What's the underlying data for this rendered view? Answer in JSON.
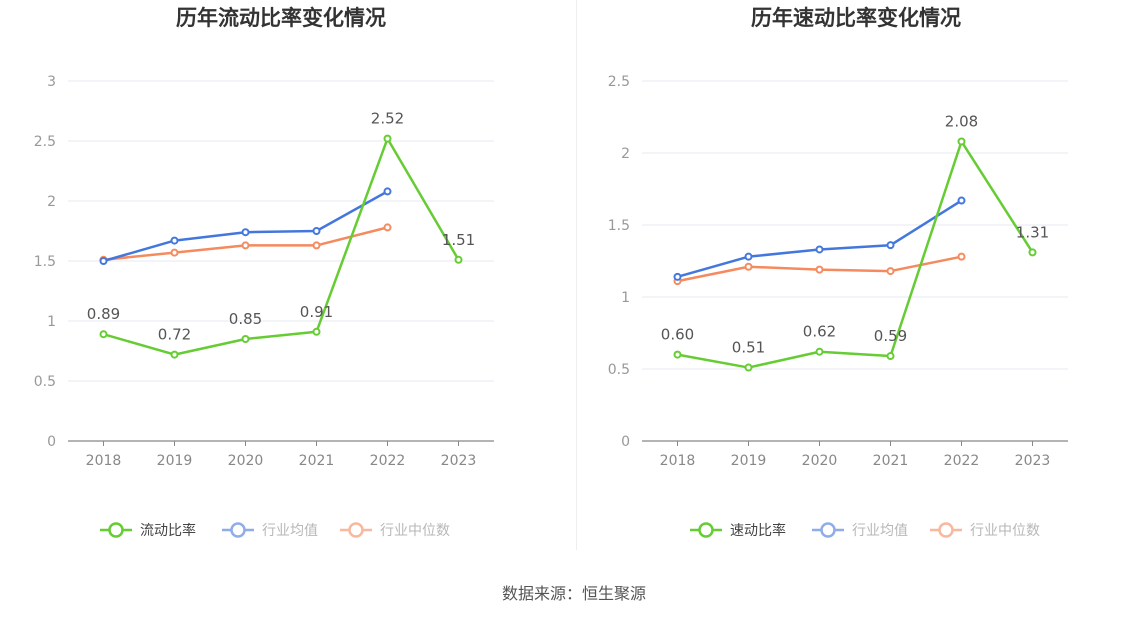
{
  "colors": {
    "current_ratio": "#66cc33",
    "industry_avg": "#4477dd",
    "industry_median": "#f58a5e",
    "grid": "#e6e9f0",
    "axis": "#888888"
  },
  "source": "数据来源：恒生聚源",
  "chart_data": [
    {
      "type": "line",
      "title": "历年流动比率变化情况",
      "x": [
        "2018",
        "2019",
        "2020",
        "2021",
        "2022",
        "2023"
      ],
      "ylim": [
        0,
        3
      ],
      "yticks": [
        "0",
        "0.5",
        "1",
        "1.5",
        "2",
        "2.5",
        "3"
      ],
      "grid": true,
      "legend_position": "bottom",
      "series": [
        {
          "name": "流动比率",
          "values": [
            0.89,
            0.72,
            0.85,
            0.91,
            2.52,
            1.51
          ],
          "labels": [
            "0.89",
            "0.72",
            "0.85",
            "0.91",
            "2.52",
            "1.51"
          ],
          "color_key": "current_ratio"
        },
        {
          "name": "行业均值",
          "values": [
            1.5,
            1.67,
            1.74,
            1.75,
            2.08,
            null
          ],
          "color_key": "industry_avg"
        },
        {
          "name": "行业中位数",
          "values": [
            1.51,
            1.57,
            1.63,
            1.63,
            1.78,
            null
          ],
          "color_key": "industry_median"
        }
      ]
    },
    {
      "type": "line",
      "title": "历年速动比率变化情况",
      "x": [
        "2018",
        "2019",
        "2020",
        "2021",
        "2022",
        "2023"
      ],
      "ylim": [
        0,
        2.5
      ],
      "yticks": [
        "0",
        "0.5",
        "1",
        "1.5",
        "2",
        "2.5"
      ],
      "grid": true,
      "legend_position": "bottom",
      "series": [
        {
          "name": "速动比率",
          "values": [
            0.6,
            0.51,
            0.62,
            0.59,
            2.08,
            1.31
          ],
          "labels": [
            "0.60",
            "0.51",
            "0.62",
            "0.59",
            "2.08",
            "1.31"
          ],
          "color_key": "current_ratio"
        },
        {
          "name": "行业均值",
          "values": [
            1.14,
            1.28,
            1.33,
            1.36,
            1.67,
            null
          ],
          "color_key": "industry_avg"
        },
        {
          "name": "行业中位数",
          "values": [
            1.11,
            1.21,
            1.19,
            1.18,
            1.28,
            null
          ],
          "color_key": "industry_median"
        }
      ]
    }
  ]
}
